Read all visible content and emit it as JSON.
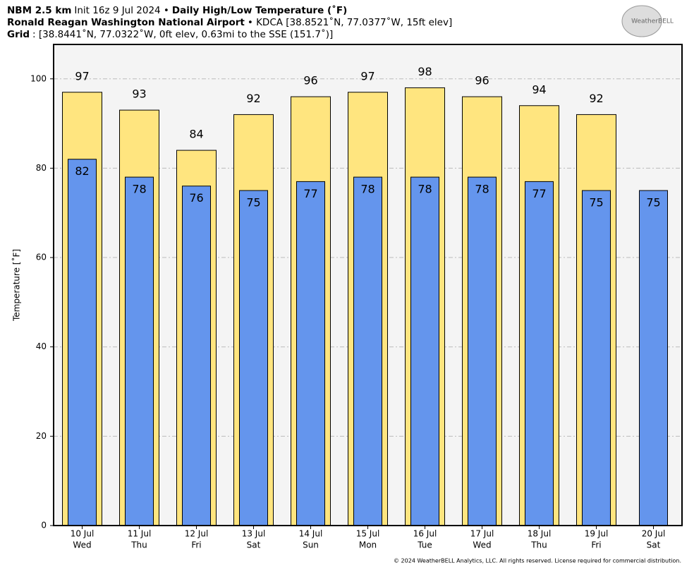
{
  "chart_data": {
    "type": "bar",
    "title_lines": [
      [
        {
          "text": "NBM 2.5 km",
          "bold": true
        },
        {
          "text": "Init 16z 9 Jul 2024 •",
          "bold": false
        },
        {
          "text": "Daily High/Low Temperature (˚F)",
          "bold": true
        }
      ],
      [
        {
          "text": "Ronald Reagan Washington National Airport",
          "bold": true
        },
        {
          "text": "• KDCA [38.8521˚N, 77.0377˚W, 15ft elev]",
          "bold": false
        }
      ],
      [
        {
          "text": "Grid",
          "bold": true
        },
        {
          "text": ": [38.8441˚N, 77.0322˚W, 0ft elev, 0.63mi to the SSE (151.7˚)]",
          "bold": false
        }
      ]
    ],
    "logo_text": "WeatherBELL",
    "y_label": "Temperature [˚F]",
    "footer": "© 2024 WeatherBELL Analytics, LLC. All rights reserved. License required for commercial distribution.",
    "categories": [
      "10 Jul",
      "11 Jul",
      "12 Jul",
      "13 Jul",
      "14 Jul",
      "15 Jul",
      "16 Jul",
      "17 Jul",
      "18 Jul",
      "19 Jul",
      "20 Jul"
    ],
    "category_sublabels": [
      "Wed",
      "Thu",
      "Fri",
      "Sat",
      "Sun",
      "Mon",
      "Tue",
      "Wed",
      "Thu",
      "Fri",
      "Sat"
    ],
    "series": [
      {
        "name": "High",
        "color": "#ffe57f",
        "values": [
          97,
          93,
          84,
          92,
          96,
          97,
          98,
          96,
          94,
          92,
          null
        ]
      },
      {
        "name": "Low",
        "color": "#6495ed",
        "values": [
          82,
          78,
          76,
          75,
          77,
          78,
          78,
          78,
          77,
          75,
          75
        ]
      }
    ],
    "ylim": [
      0,
      107.7
    ],
    "yticks": [
      0,
      20,
      40,
      60,
      80,
      100
    ],
    "grid": true
  }
}
